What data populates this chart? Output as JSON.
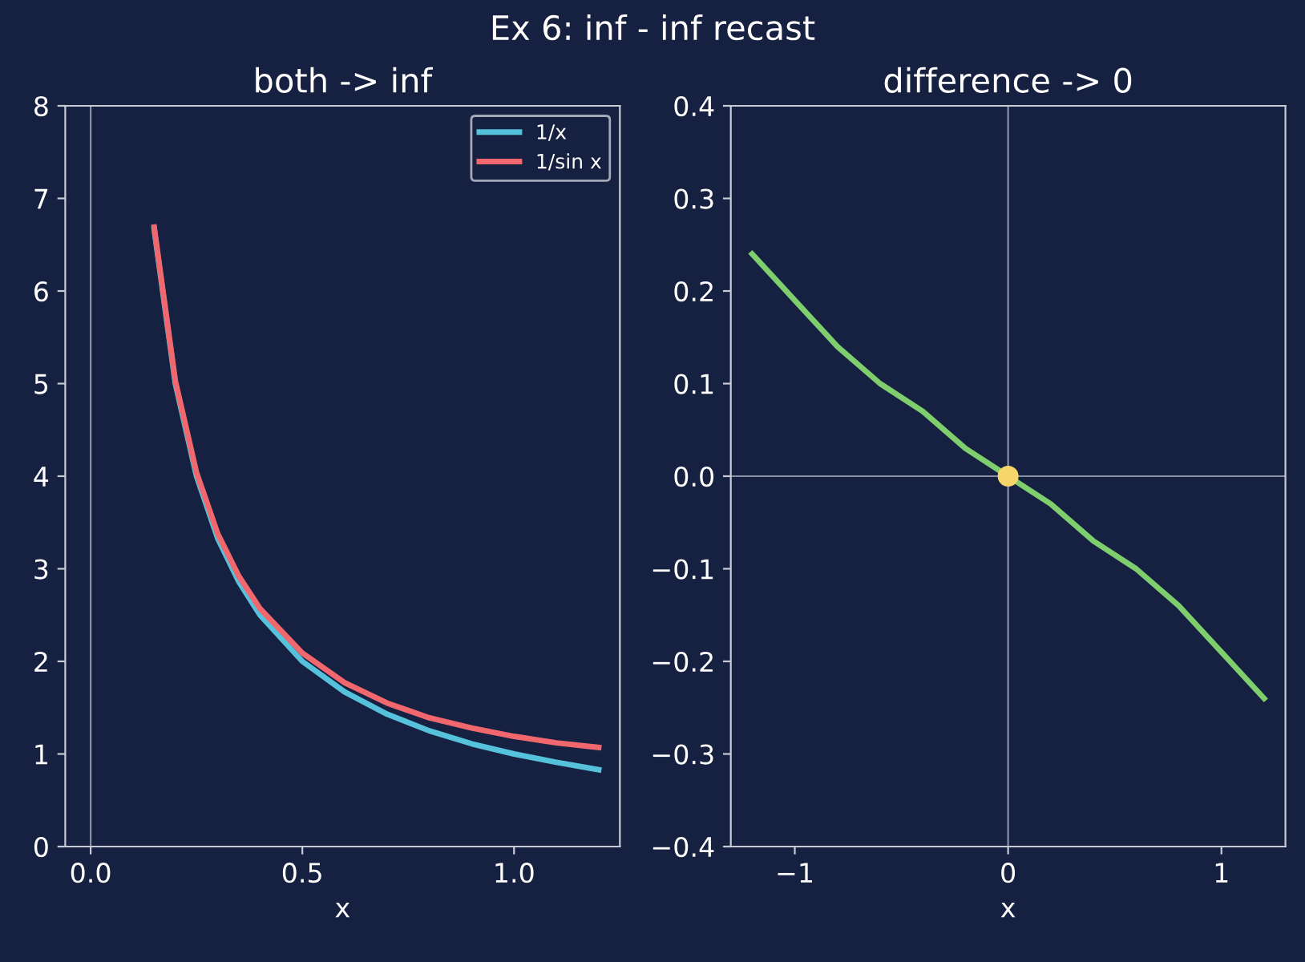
{
  "chart_data": [
    {
      "type": "line",
      "title": "both -> inf",
      "annotations": [
        "Ex 6: inf - inf recast"
      ],
      "xlabel": "x",
      "xlim": [
        -0.06,
        1.25
      ],
      "xticks": [
        {
          "value": 0,
          "label": "0.0"
        },
        {
          "value": 0.5,
          "label": "0.5"
        },
        {
          "value": 1,
          "label": "1.0"
        }
      ],
      "ylim": [
        0,
        8
      ],
      "yticks": [
        0,
        1,
        2,
        3,
        4,
        5,
        6,
        7,
        8
      ],
      "legend": "top right",
      "grid": false,
      "ref_lines": [
        {
          "axis": "x",
          "value": 0,
          "color": "#8a90a4"
        }
      ],
      "x": [
        0.15,
        0.2,
        0.25,
        0.3,
        0.35,
        0.4,
        0.5,
        0.6,
        0.7,
        0.8,
        0.9,
        1.0,
        1.1,
        1.2
      ],
      "series": [
        {
          "name": "1/x",
          "color": "#56c1da",
          "values": [
            6.67,
            5,
            4,
            3.33,
            2.86,
            2.5,
            2,
            1.67,
            1.43,
            1.25,
            1.11,
            1,
            0.91,
            0.83
          ]
        },
        {
          "name": "1/sin x",
          "color": "#f0686e",
          "values": [
            6.69,
            5.03,
            4.04,
            3.38,
            2.92,
            2.57,
            2.09,
            1.77,
            1.55,
            1.39,
            1.28,
            1.19,
            1.12,
            1.07
          ]
        }
      ]
    },
    {
      "type": "line",
      "title": "difference -> 0",
      "xlabel": "x",
      "xlim": [
        -1.3,
        1.3
      ],
      "xticks": [
        {
          "value": -1,
          "label": "−1"
        },
        0,
        1
      ],
      "ylim": [
        -0.4,
        0.4
      ],
      "yticks": [
        {
          "value": -0.4,
          "label": "−0.4"
        },
        {
          "value": -0.3,
          "label": "−0.3"
        },
        {
          "value": -0.2,
          "label": "−0.2"
        },
        {
          "value": -0.1,
          "label": "−0.1"
        },
        {
          "value": 0,
          "label": "0.0"
        },
        0.1,
        0.2,
        0.3,
        0.4
      ],
      "legend": false,
      "grid": false,
      "ref_lines": [
        {
          "axis": "x",
          "value": 0,
          "color": "#8a90a4"
        },
        {
          "axis": "y",
          "value": 0,
          "color": "#8a90a4"
        }
      ],
      "series": [
        {
          "color": "#7fce6e",
          "x": [
            -1.2,
            -1.0,
            -0.8,
            -0.6,
            -0.4,
            -0.2,
            0,
            0.2,
            0.4,
            0.6,
            0.8,
            1.0,
            1.2
          ],
          "values": [
            0.24,
            0.19,
            0.14,
            0.1,
            0.07,
            0.03,
            0,
            -0.03,
            -0.07,
            -0.1,
            -0.14,
            -0.19,
            -0.24
          ]
        },
        {
          "type": "scatter",
          "marker": "circle",
          "color": "#f7d56a",
          "x": [
            0
          ],
          "values": [
            0
          ]
        }
      ]
    }
  ]
}
